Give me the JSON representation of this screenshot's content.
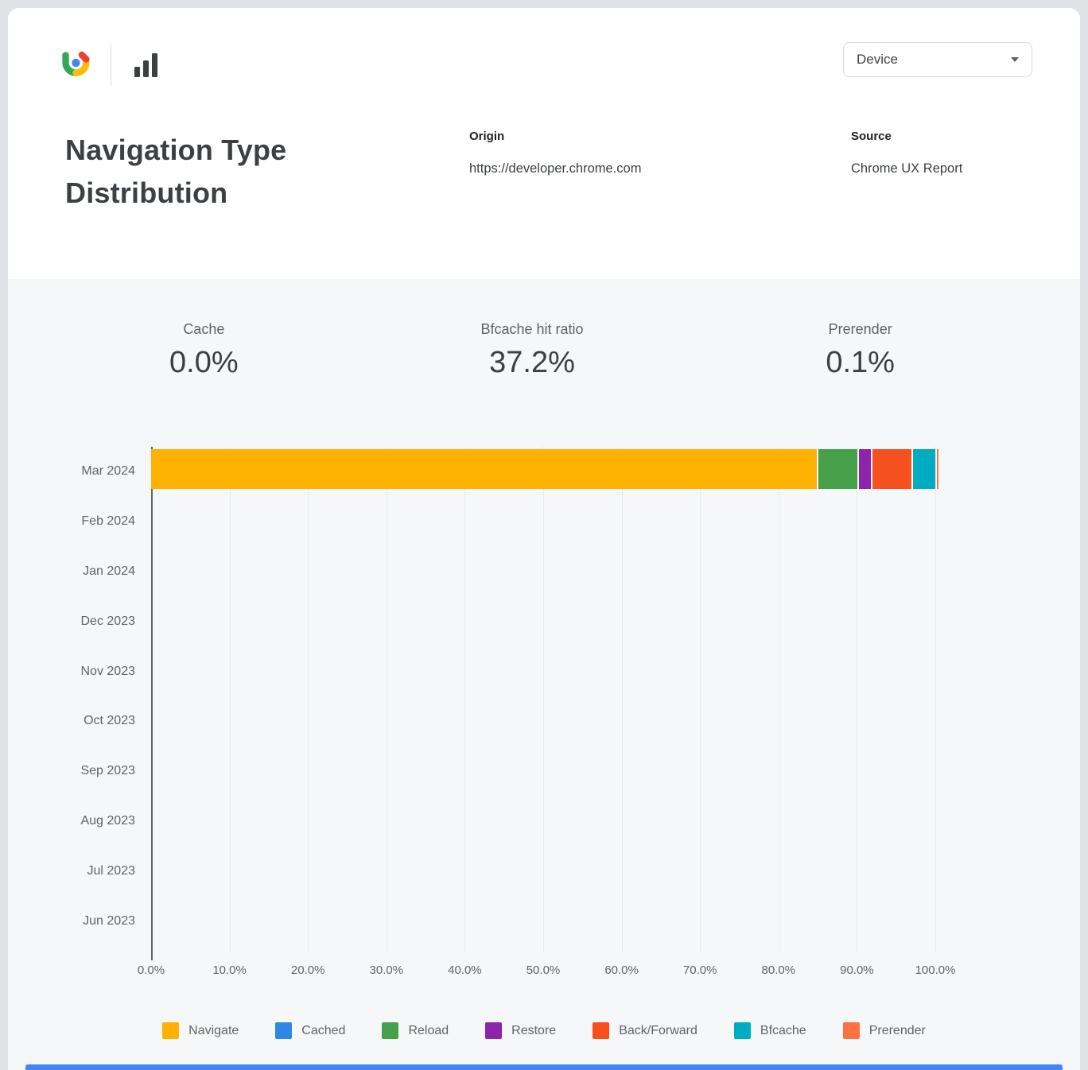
{
  "header": {
    "title": "Navigation Type Distribution",
    "device_dropdown": {
      "value": "Device"
    },
    "origin": {
      "label": "Origin",
      "value": "https://developer.chrome.com"
    },
    "source": {
      "label": "Source",
      "value": "Chrome UX Report"
    },
    "icons": {
      "logo": "crux-logo",
      "toolbar": "bar-chart",
      "dropdown_caret": "chevron-down"
    }
  },
  "stats": [
    {
      "label": "Cache",
      "value": "0.0%"
    },
    {
      "label": "Bfcache hit ratio",
      "value": "37.2%"
    },
    {
      "label": "Prerender",
      "value": "0.1%"
    }
  ],
  "chart_data": {
    "type": "bar",
    "stacked": true,
    "orientation": "horizontal",
    "title": "Navigation Type Distribution",
    "categories": [
      "Mar 2024",
      "Feb 2024",
      "Jan 2024",
      "Dec 2023",
      "Nov 2023",
      "Oct 2023",
      "Sep 2023",
      "Aug 2023",
      "Jul 2023",
      "Jun 2023"
    ],
    "series": [
      {
        "name": "Navigate",
        "color": "#FCB103",
        "values": [
          84.9,
          0,
          0,
          0,
          0,
          0,
          0,
          0,
          0,
          0
        ]
      },
      {
        "name": "Cached",
        "color": "#2D87E4",
        "values": [
          0.0,
          0,
          0,
          0,
          0,
          0,
          0,
          0,
          0,
          0
        ]
      },
      {
        "name": "Reload",
        "color": "#45A049",
        "values": [
          5.0,
          0,
          0,
          0,
          0,
          0,
          0,
          0,
          0,
          0
        ]
      },
      {
        "name": "Restore",
        "color": "#8E24AA",
        "values": [
          1.5,
          0,
          0,
          0,
          0,
          0,
          0,
          0,
          0,
          0
        ]
      },
      {
        "name": "Back/Forward",
        "color": "#F4511E",
        "values": [
          4.9,
          0,
          0,
          0,
          0,
          0,
          0,
          0,
          0,
          0
        ]
      },
      {
        "name": "Bfcache",
        "color": "#00ACC1",
        "values": [
          2.9,
          0,
          0,
          0,
          0,
          0,
          0,
          0,
          0,
          0
        ]
      },
      {
        "name": "Prerender",
        "color": "#FF7043",
        "values": [
          0.1,
          0,
          0,
          0,
          0,
          0,
          0,
          0,
          0,
          0
        ]
      }
    ],
    "x_ticks": [
      "0.0%",
      "10.0%",
      "20.0%",
      "30.0%",
      "40.0%",
      "50.0%",
      "60.0%",
      "70.0%",
      "80.0%",
      "90.0%",
      "100.0%"
    ],
    "xlim": [
      0,
      100
    ],
    "grid": true,
    "legend_position": "bottom"
  },
  "colors": {
    "page_background": "#E0E2E5",
    "header_background": "#FFFFFF",
    "chart_background": "#F6F7F9",
    "text_primary": "#3C4043",
    "text_secondary": "#5F6368",
    "gridline": "#E8E9EC",
    "bottom_strip": "#4285F4"
  }
}
